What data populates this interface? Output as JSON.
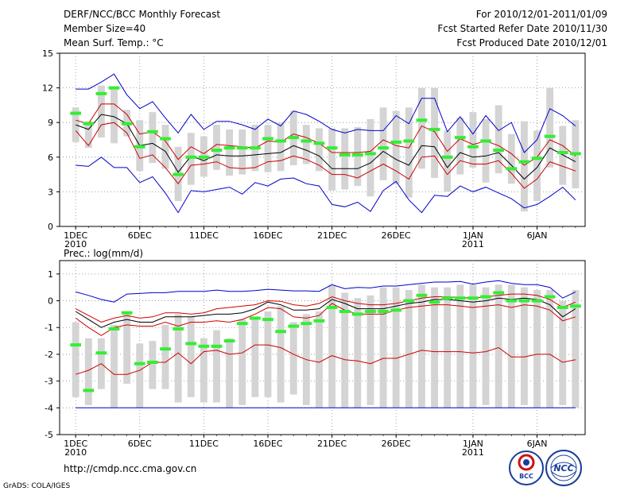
{
  "header": {
    "title": "DERF/NCC/BCC Monthly Forecast",
    "member_size": "Member Size=40",
    "variable1": "Mean Surf. Temp.: °C",
    "period": "For 2010/12/01-2011/01/09",
    "fcst_started": "Fcst Started Refer Date 2010/11/30",
    "fcst_produced": "Fcst Produced Date 2010/12/01"
  },
  "footer": {
    "url": "http://cmdp.ncc.cma.gov.cn",
    "credit": "GrADS: COLA/IGES",
    "logo_bcc": "BCC",
    "logo_ncc": "NCC"
  },
  "colors": {
    "box": "#d4d4d4",
    "obs": "#33ee33",
    "envelope": "#0000cc",
    "percentile": "#cc0000",
    "median": "#000000",
    "grid": "#888888"
  },
  "chart_data": [
    {
      "type": "box",
      "title": "Mean Surf. Temp.: °C",
      "ylabel": "°C",
      "ylim": [
        0,
        15
      ],
      "yticks": [
        "0",
        "3",
        "6",
        "9",
        "12",
        "15"
      ],
      "xtick_labels": [
        {
          "day": 1,
          "label": "1DEC",
          "sub": "2010"
        },
        {
          "day": 6,
          "label": "6DEC",
          "sub": ""
        },
        {
          "day": 11,
          "label": "11DEC",
          "sub": ""
        },
        {
          "day": 16,
          "label": "16DEC",
          "sub": ""
        },
        {
          "day": 21,
          "label": "21DEC",
          "sub": ""
        },
        {
          "day": 26,
          "label": "26DEC",
          "sub": ""
        },
        {
          "day": 32,
          "label": "1JAN",
          "sub": "2011"
        },
        {
          "day": 37,
          "label": "6JAN",
          "sub": ""
        }
      ],
      "days": [
        1,
        2,
        3,
        4,
        5,
        6,
        7,
        8,
        9,
        10,
        11,
        12,
        13,
        14,
        15,
        16,
        17,
        18,
        19,
        20,
        21,
        22,
        23,
        24,
        25,
        26,
        27,
        28,
        29,
        30,
        31,
        32,
        33,
        34,
        35,
        36,
        37,
        38,
        39,
        40
      ],
      "max": [
        11.9,
        11.9,
        12.5,
        13.2,
        11.4,
        10.2,
        10.8,
        9.4,
        8.1,
        9.7,
        8.4,
        9.1,
        9.1,
        8.8,
        8.4,
        9.3,
        8.7,
        10.0,
        9.7,
        9.1,
        8.4,
        8.1,
        8.4,
        8.3,
        8.3,
        9.6,
        8.9,
        11.1,
        11.1,
        8.2,
        9.5,
        8.0,
        9.6,
        8.3,
        9.0,
        6.4,
        7.5,
        10.2,
        9.6,
        8.7
      ],
      "p90": [
        9.2,
        8.9,
        10.6,
        10.6,
        9.7,
        8.0,
        8.2,
        7.4,
        5.8,
        6.9,
        6.3,
        7.1,
        7.0,
        6.9,
        6.8,
        7.4,
        7.3,
        8.0,
        7.7,
        7.2,
        6.4,
        6.4,
        6.4,
        6.5,
        7.5,
        7.0,
        6.8,
        8.7,
        8.2,
        6.5,
        7.6,
        7.1,
        7.4,
        7.0,
        6.3,
        5.3,
        6.0,
        7.5,
        7.0,
        6.1
      ],
      "median": [
        8.8,
        8.4,
        9.7,
        9.5,
        8.9,
        7.0,
        7.2,
        6.5,
        4.7,
        6.1,
        5.7,
        6.2,
        6.1,
        6.1,
        6.2,
        6.3,
        6.4,
        7.0,
        6.6,
        6.1,
        5.0,
        5.0,
        5.0,
        5.5,
        6.5,
        5.8,
        5.3,
        7.0,
        6.9,
        5.1,
        6.4,
        6.0,
        6.1,
        6.4,
        5.3,
        4.1,
        5.1,
        6.8,
        6.2,
        5.6
      ],
      "p10": [
        8.3,
        7.0,
        8.8,
        9.0,
        8.1,
        5.9,
        6.2,
        5.1,
        3.7,
        5.3,
        5.4,
        5.6,
        5.1,
        5.0,
        5.1,
        5.6,
        5.7,
        6.1,
        5.8,
        5.3,
        4.5,
        4.5,
        4.2,
        4.8,
        5.4,
        4.8,
        4.1,
        6.0,
        6.1,
        4.5,
        5.7,
        5.4,
        5.4,
        5.7,
        4.6,
        3.3,
        4.1,
        5.6,
        5.2,
        4.8
      ],
      "min": [
        5.3,
        5.2,
        6.0,
        5.1,
        5.1,
        3.8,
        4.3,
        2.9,
        1.2,
        3.1,
        3.0,
        3.2,
        3.4,
        2.8,
        3.8,
        3.5,
        4.1,
        4.2,
        3.7,
        3.5,
        1.9,
        1.7,
        2.1,
        1.3,
        3.1,
        3.9,
        2.3,
        1.2,
        2.7,
        2.6,
        3.5,
        3.0,
        3.4,
        2.9,
        2.4,
        1.6,
        1.9,
        2.6,
        3.4,
        2.3
      ],
      "box_hi": [
        10.3,
        9.1,
        12.2,
        12.1,
        10.1,
        9.2,
        9.9,
        8.8,
        6.9,
        8.1,
        7.8,
        8.8,
        8.4,
        8.4,
        8.8,
        8.8,
        9.0,
        10.0,
        8.8,
        8.5,
        8.5,
        8.5,
        8.6,
        9.3,
        10.3,
        10.0,
        10.3,
        12.0,
        12.0,
        8.3,
        9.4,
        9.9,
        9.3,
        10.5,
        8.0,
        9.1,
        8.3,
        12.0,
        8.7,
        9.2
      ],
      "box_lo": [
        7.3,
        6.8,
        7.7,
        7.2,
        7.8,
        4.8,
        5.5,
        5.0,
        2.2,
        3.6,
        4.3,
        4.9,
        4.4,
        4.5,
        4.8,
        4.7,
        4.8,
        5.3,
        5.4,
        4.8,
        3.1,
        3.2,
        3.5,
        2.6,
        4.0,
        3.7,
        2.5,
        5.0,
        4.2,
        3.0,
        4.5,
        5.1,
        3.8,
        4.6,
        3.7,
        1.3,
        2.2,
        5.1,
        3.6,
        3.3
      ],
      "obs": [
        9.8,
        8.9,
        11.5,
        12.0,
        8.9,
        6.9,
        8.2,
        7.6,
        4.5,
        6.0,
        6.0,
        6.6,
        6.8,
        6.8,
        6.8,
        7.6,
        7.4,
        7.7,
        7.4,
        7.2,
        6.8,
        6.2,
        6.2,
        6.3,
        6.8,
        7.3,
        7.4,
        9.2,
        8.4,
        6.0,
        7.7,
        6.9,
        7.4,
        6.6,
        5.0,
        5.6,
        5.9,
        7.8,
        6.4,
        6.3
      ]
    },
    {
      "type": "box",
      "title": "Prec.: log(mm/d)",
      "ylabel": "log(mm/d)",
      "ylim": [
        -5,
        1.5
      ],
      "yticks": [
        "-5",
        "-4",
        "-3",
        "-2",
        "-1",
        "0",
        "1"
      ],
      "xtick_labels": [
        {
          "day": 1,
          "label": "1DEC",
          "sub": "2010"
        },
        {
          "day": 6,
          "label": "6DEC",
          "sub": ""
        },
        {
          "day": 11,
          "label": "11DEC",
          "sub": ""
        },
        {
          "day": 16,
          "label": "16DEC",
          "sub": ""
        },
        {
          "day": 21,
          "label": "21DEC",
          "sub": ""
        },
        {
          "day": 26,
          "label": "26DEC",
          "sub": ""
        },
        {
          "day": 32,
          "label": "1JAN",
          "sub": "2011"
        },
        {
          "day": 37,
          "label": "6JAN",
          "sub": ""
        }
      ],
      "days": [
        1,
        2,
        3,
        4,
        5,
        6,
        7,
        8,
        9,
        10,
        11,
        12,
        13,
        14,
        15,
        16,
        17,
        18,
        19,
        20,
        21,
        22,
        23,
        24,
        25,
        26,
        27,
        28,
        29,
        30,
        31,
        32,
        33,
        34,
        35,
        36,
        37,
        38,
        39,
        40
      ],
      "max": [
        0.33,
        0.2,
        0.05,
        -0.05,
        0.25,
        0.27,
        0.3,
        0.3,
        0.35,
        0.35,
        0.35,
        0.4,
        0.35,
        0.35,
        0.38,
        0.43,
        0.4,
        0.37,
        0.37,
        0.35,
        0.6,
        0.45,
        0.5,
        0.48,
        0.55,
        0.55,
        0.6,
        0.65,
        0.7,
        0.7,
        0.72,
        0.62,
        0.7,
        0.75,
        0.65,
        0.6,
        0.6,
        0.5,
        0.1,
        0.33
      ],
      "p90": [
        -0.3,
        -0.55,
        -0.8,
        -0.65,
        -0.55,
        -0.65,
        -0.6,
        -0.45,
        -0.45,
        -0.5,
        -0.45,
        -0.3,
        -0.25,
        -0.2,
        -0.15,
        0.0,
        -0.02,
        -0.15,
        -0.2,
        -0.1,
        0.15,
        0.0,
        -0.1,
        -0.15,
        -0.15,
        -0.1,
        0.0,
        0.1,
        0.15,
        0.15,
        0.12,
        0.1,
        0.15,
        0.2,
        0.25,
        0.25,
        0.2,
        0.05,
        -0.25,
        -0.05
      ],
      "median": [
        -0.4,
        -0.7,
        -1.0,
        -0.8,
        -0.7,
        -0.8,
        -0.8,
        -0.6,
        -0.6,
        -0.6,
        -0.55,
        -0.5,
        -0.5,
        -0.45,
        -0.3,
        -0.05,
        -0.15,
        -0.35,
        -0.35,
        -0.3,
        0.05,
        -0.1,
        -0.3,
        -0.3,
        -0.3,
        -0.2,
        -0.1,
        -0.05,
        0.05,
        0.05,
        0.0,
        -0.05,
        0.0,
        0.1,
        0.05,
        0.1,
        0.05,
        -0.15,
        -0.6,
        -0.3
      ],
      "p10": [
        -0.65,
        -1.0,
        -1.3,
        -1.0,
        -0.9,
        -0.95,
        -0.95,
        -0.8,
        -0.95,
        -0.8,
        -0.8,
        -0.75,
        -0.8,
        -0.7,
        -0.5,
        -0.25,
        -0.3,
        -0.6,
        -0.65,
        -0.55,
        -0.1,
        -0.35,
        -0.5,
        -0.5,
        -0.5,
        -0.35,
        -0.25,
        -0.2,
        -0.15,
        -0.15,
        -0.2,
        -0.25,
        -0.2,
        -0.15,
        -0.25,
        -0.15,
        -0.2,
        -0.35,
        -0.75,
        -0.6
      ],
      "min": [
        -4,
        -4,
        -4,
        -4,
        -4,
        -4,
        -4,
        -4,
        -4,
        -4,
        -4,
        -4,
        -4,
        -4,
        -4,
        -4,
        -4,
        -4,
        -4,
        -4,
        -4,
        -4,
        -4,
        -4,
        -4,
        -4,
        -4,
        -4,
        -4,
        -4,
        -4,
        -4,
        -4,
        -4,
        -4,
        -4,
        -4,
        -4,
        -4,
        -4
      ],
      "lower_red": [
        -2.75,
        -2.6,
        -2.35,
        -2.75,
        -2.75,
        -2.6,
        -2.3,
        -2.3,
        -1.95,
        -2.35,
        -1.9,
        -1.85,
        -2.0,
        -1.95,
        -1.65,
        -1.65,
        -1.75,
        -2.0,
        -2.2,
        -2.3,
        -2.05,
        -2.2,
        -2.25,
        -2.35,
        -2.15,
        -2.15,
        -2.0,
        -1.85,
        -1.9,
        -1.9,
        -1.9,
        -1.95,
        -1.9,
        -1.75,
        -2.1,
        -2.1,
        -2.0,
        -2.0,
        -2.3,
        -2.2
      ],
      "box_hi": [
        -0.8,
        -1.4,
        -1.4,
        -0.9,
        -0.4,
        -1.6,
        -1.5,
        -0.9,
        -0.5,
        -0.6,
        -1.4,
        -1.1,
        -1.4,
        -0.7,
        -0.6,
        -0.4,
        -0.2,
        -0.8,
        -0.5,
        -0.4,
        0.6,
        0.3,
        0.1,
        0.2,
        0.5,
        0.5,
        0.4,
        0.6,
        0.5,
        0.5,
        0.6,
        0.6,
        0.5,
        0.6,
        0.6,
        0.5,
        0.4,
        0.4,
        0.0,
        0.4
      ],
      "box_lo": [
        -3.6,
        -3.9,
        -3.3,
        -4.0,
        -3.1,
        -4.0,
        -3.3,
        -3.3,
        -3.8,
        -3.6,
        -3.8,
        -3.8,
        -4.0,
        -3.9,
        -3.6,
        -3.6,
        -3.8,
        -3.5,
        -3.9,
        -4.0,
        -4.0,
        -4.0,
        -4.0,
        -3.9,
        -4.0,
        -4.0,
        -4.0,
        -4.0,
        -4.0,
        -4.0,
        -4.0,
        -4.0,
        -3.9,
        -4.0,
        -4.0,
        -3.9,
        -4.0,
        -4.0,
        -3.9,
        -4.0
      ],
      "obs": [
        -1.65,
        -3.35,
        -1.95,
        -1.05,
        -0.45,
        -2.35,
        -2.3,
        -1.8,
        -1.05,
        -1.6,
        -1.7,
        -1.7,
        -1.5,
        -0.85,
        -0.65,
        -0.7,
        -1.15,
        -0.95,
        -0.85,
        -0.75,
        -0.25,
        -0.4,
        -0.5,
        -0.4,
        -0.4,
        -0.35,
        0.0,
        0.2,
        -0.05,
        0.1,
        0.1,
        0.1,
        0.15,
        0.3,
        0.0,
        0.0,
        0.0,
        0.15,
        -0.25,
        -0.2
      ]
    }
  ]
}
